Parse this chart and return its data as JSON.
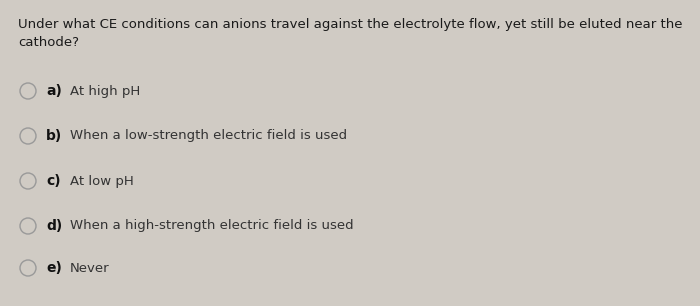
{
  "background_color": "#d0cbc4",
  "question": "Under what CE conditions can anions travel against the electrolyte flow, yet still be eluted near the\ncathode?",
  "options": [
    {
      "label": "a)",
      "text": "At high pH"
    },
    {
      "label": "b)",
      "text": "When a low-strength electric field is used"
    },
    {
      "label": "c)",
      "text": "At low pH"
    },
    {
      "label": "d)",
      "text": "When a high-strength electric field is used"
    },
    {
      "label": "e)",
      "text": "Never"
    }
  ],
  "question_fontsize": 9.5,
  "option_label_fontsize": 10.0,
  "option_text_fontsize": 9.5,
  "question_color": "#1a1a1a",
  "option_label_color": "#111111",
  "option_text_color": "#333333",
  "circle_color": "#999999",
  "circle_linewidth": 1.0
}
